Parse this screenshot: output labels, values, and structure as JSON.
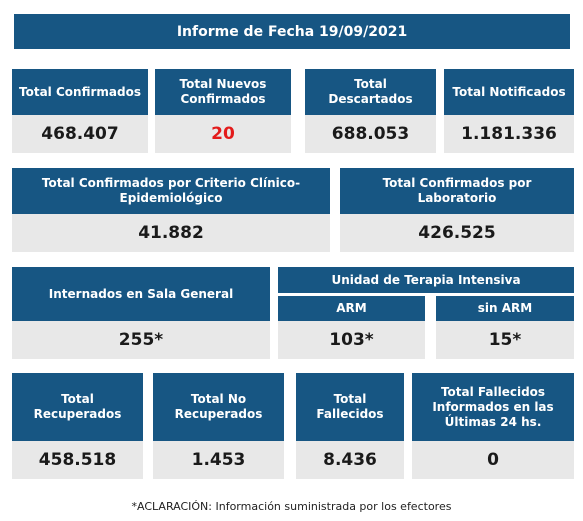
{
  "title": "Informe de Fecha 19/09/2021",
  "row1": [
    {
      "label": "Total Confirmados",
      "value": "468.407"
    },
    {
      "label": "Total Nuevos Confirmados",
      "value": "20",
      "value_color": "#e31b1b"
    },
    {
      "label": "Total Descartados",
      "value": "688.053"
    },
    {
      "label": "Total Notificados",
      "value": "1.181.336"
    }
  ],
  "row2": [
    {
      "label": "Total Confirmados por Criterio Clínico-Epidemiológico",
      "value": "41.882"
    },
    {
      "label": "Total Confirmados por Laboratorio",
      "value": "426.525"
    }
  ],
  "row3": {
    "sala_general": {
      "label": "Internados en Sala General",
      "value": "255*"
    },
    "uti": {
      "label": "Unidad de Terapia Intensiva",
      "arm": {
        "label": "ARM",
        "value": "103*"
      },
      "sin_arm": {
        "label": "sin ARM",
        "value": "15*"
      }
    }
  },
  "row4": [
    {
      "label": "Total Recuperados",
      "value": "458.518"
    },
    {
      "label": "Total No Recuperados",
      "value": "1.453"
    },
    {
      "label": "Total Fallecidos",
      "value": "8.436"
    },
    {
      "label": "Total Fallecidos Informados en las Últimas 24 hs.",
      "value": "0"
    }
  ],
  "note": "*ACLARACIÓN: Información suministrada por los efectores",
  "colors": {
    "header_bg": "#175683",
    "value_bg": "#e8e8e8",
    "highlight": "#e31b1b"
  }
}
